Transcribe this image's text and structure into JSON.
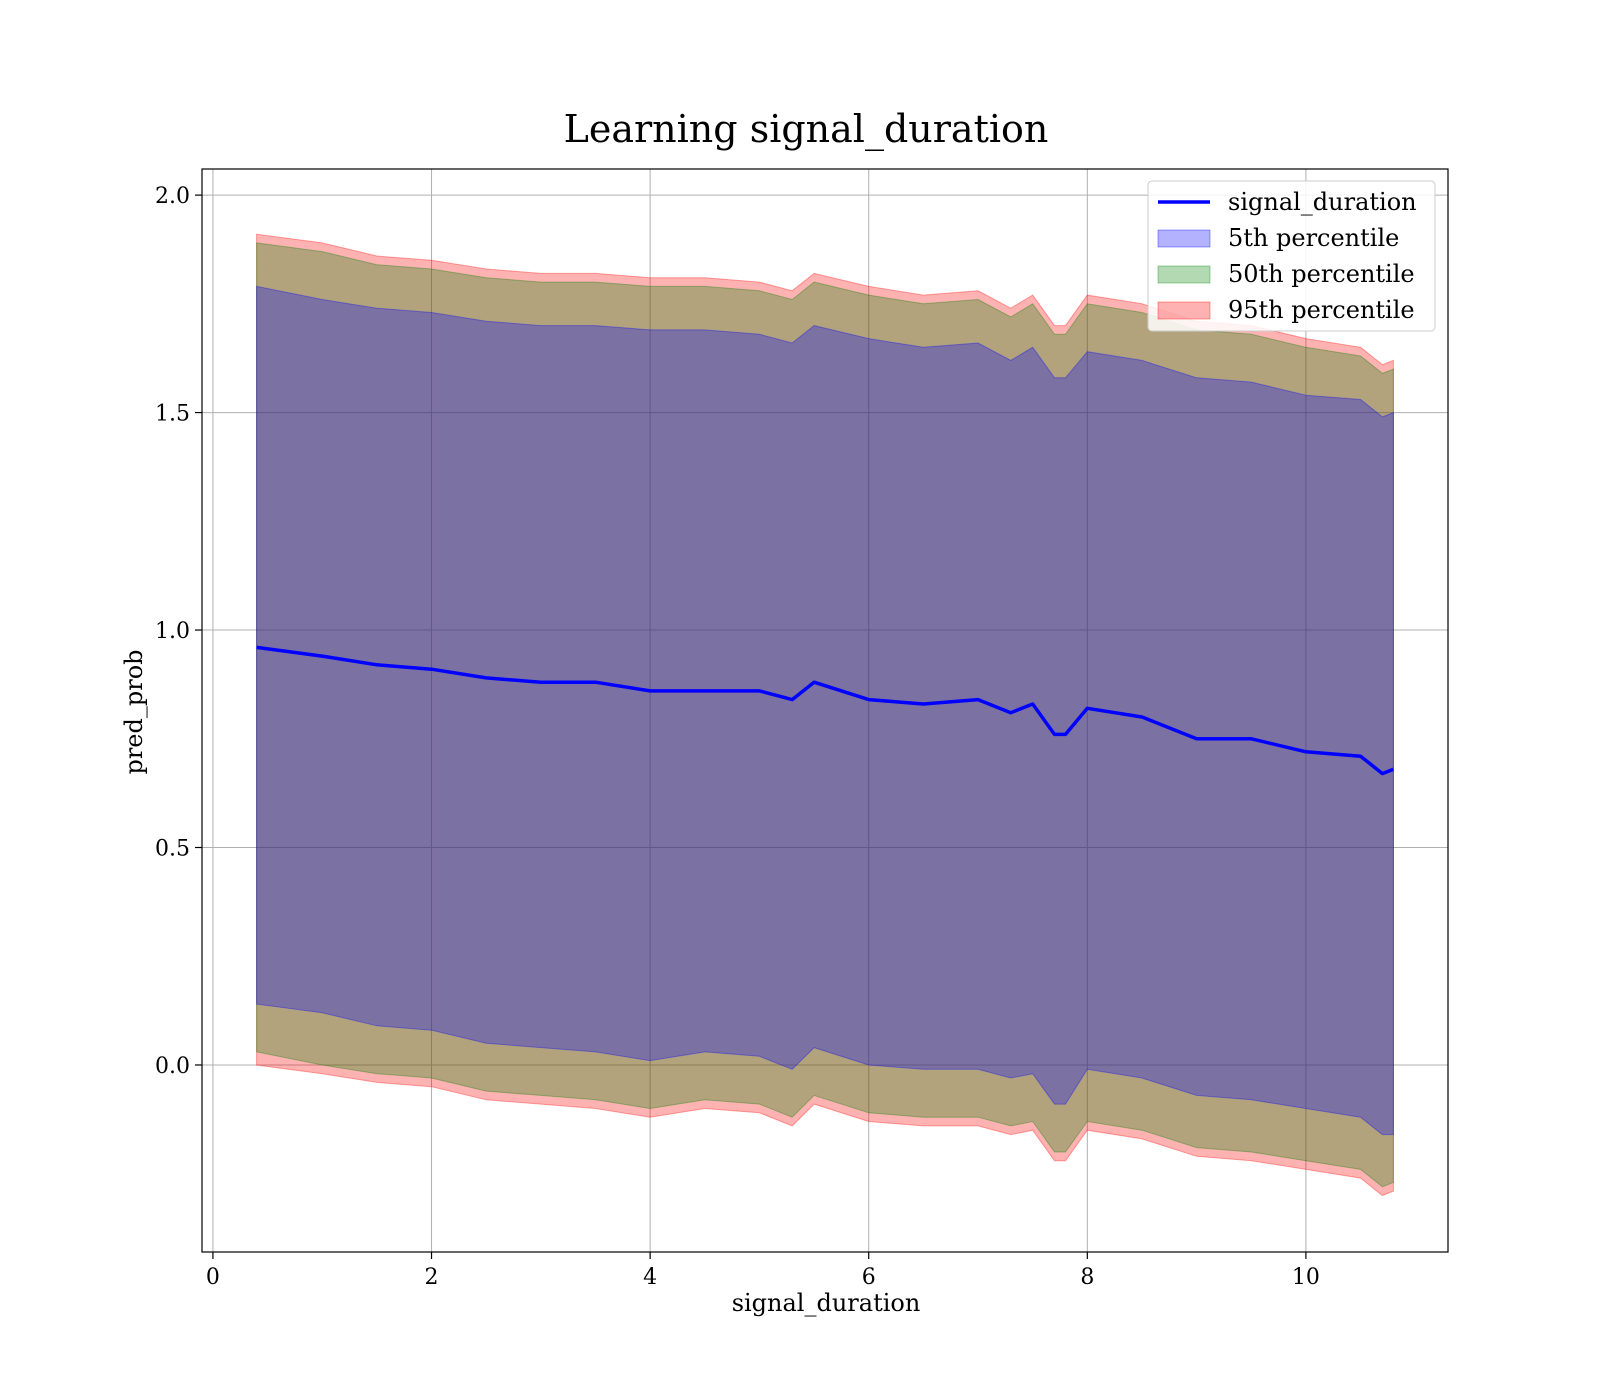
{
  "chart_data": {
    "type": "area",
    "title": "Learning signal_duration",
    "xlabel": "signal_duration",
    "ylabel": "pred_prob",
    "xlim": [
      -0.1,
      11.3
    ],
    "ylim": [
      -0.43,
      2.06
    ],
    "x_ticks": [
      0,
      2,
      4,
      6,
      8,
      10
    ],
    "y_ticks": [
      0.0,
      0.5,
      1.0,
      1.5,
      2.0
    ],
    "x_tick_labels": [
      "0",
      "2",
      "4",
      "6",
      "8",
      "10"
    ],
    "y_tick_labels": [
      "0.0",
      "0.5",
      "1.0",
      "1.5",
      "2.0"
    ],
    "grid": true,
    "legend_position": "top-right",
    "legend": [
      {
        "label": "signal_duration",
        "kind": "line",
        "color": "#0000ff"
      },
      {
        "label": "5th percentile",
        "kind": "patch",
        "color": "#0000ff"
      },
      {
        "label": "50th percentile",
        "kind": "patch",
        "color": "#008000"
      },
      {
        "label": "95th percentile",
        "kind": "patch",
        "color": "#ff0000"
      }
    ],
    "x": [
      0.4,
      1.0,
      1.5,
      2.0,
      2.5,
      3.0,
      3.5,
      4.0,
      4.5,
      5.0,
      5.3,
      5.5,
      6.0,
      6.5,
      7.0,
      7.3,
      7.5,
      7.7,
      7.8,
      8.0,
      8.5,
      9.0,
      9.5,
      10.0,
      10.5,
      10.7,
      10.8
    ],
    "series": [
      {
        "name": "signal_duration",
        "color": "#0000ff",
        "values": [
          0.96,
          0.94,
          0.92,
          0.91,
          0.89,
          0.88,
          0.88,
          0.86,
          0.86,
          0.86,
          0.84,
          0.88,
          0.84,
          0.83,
          0.84,
          0.81,
          0.83,
          0.76,
          0.76,
          0.82,
          0.8,
          0.75,
          0.75,
          0.72,
          0.71,
          0.67,
          0.68
        ]
      }
    ],
    "bands": [
      {
        "name": "5th percentile",
        "color": "#0000ff",
        "lower": [
          0.14,
          0.12,
          0.09,
          0.08,
          0.05,
          0.04,
          0.03,
          0.01,
          0.03,
          0.02,
          -0.01,
          0.04,
          0.0,
          -0.01,
          -0.01,
          -0.03,
          -0.02,
          -0.09,
          -0.09,
          -0.01,
          -0.03,
          -0.07,
          -0.08,
          -0.1,
          -0.12,
          -0.16,
          -0.16
        ],
        "upper": [
          1.79,
          1.76,
          1.74,
          1.73,
          1.71,
          1.7,
          1.7,
          1.69,
          1.69,
          1.68,
          1.66,
          1.7,
          1.67,
          1.65,
          1.66,
          1.62,
          1.65,
          1.58,
          1.58,
          1.64,
          1.62,
          1.58,
          1.57,
          1.54,
          1.53,
          1.49,
          1.5
        ]
      },
      {
        "name": "50th percentile",
        "color": "#008000",
        "lower": [
          0.03,
          0.0,
          -0.02,
          -0.03,
          -0.06,
          -0.07,
          -0.08,
          -0.1,
          -0.08,
          -0.09,
          -0.12,
          -0.07,
          -0.11,
          -0.12,
          -0.12,
          -0.14,
          -0.13,
          -0.2,
          -0.2,
          -0.13,
          -0.15,
          -0.19,
          -0.2,
          -0.22,
          -0.24,
          -0.28,
          -0.27
        ],
        "upper": [
          1.89,
          1.87,
          1.84,
          1.83,
          1.81,
          1.8,
          1.8,
          1.79,
          1.79,
          1.78,
          1.76,
          1.8,
          1.77,
          1.75,
          1.76,
          1.72,
          1.75,
          1.68,
          1.68,
          1.75,
          1.73,
          1.69,
          1.68,
          1.65,
          1.63,
          1.59,
          1.6
        ]
      },
      {
        "name": "95th percentile",
        "color": "#ff0000",
        "lower": [
          0.0,
          -0.02,
          -0.04,
          -0.05,
          -0.08,
          -0.09,
          -0.1,
          -0.12,
          -0.1,
          -0.11,
          -0.14,
          -0.09,
          -0.13,
          -0.14,
          -0.14,
          -0.16,
          -0.15,
          -0.22,
          -0.22,
          -0.15,
          -0.17,
          -0.21,
          -0.22,
          -0.24,
          -0.26,
          -0.3,
          -0.29
        ],
        "upper": [
          1.91,
          1.89,
          1.86,
          1.85,
          1.83,
          1.82,
          1.82,
          1.81,
          1.81,
          1.8,
          1.78,
          1.82,
          1.79,
          1.77,
          1.78,
          1.74,
          1.77,
          1.7,
          1.7,
          1.77,
          1.75,
          1.71,
          1.7,
          1.67,
          1.65,
          1.61,
          1.62
        ]
      }
    ]
  }
}
